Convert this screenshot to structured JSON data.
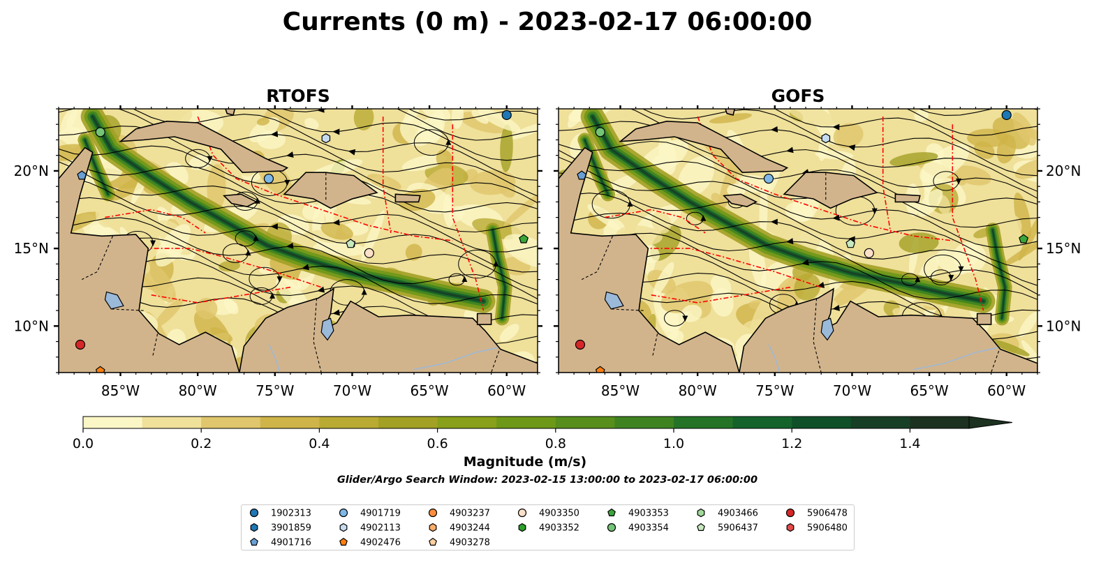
{
  "chart_data": {
    "type": "heatmap",
    "title": "Currents (0 m) - 2023-02-17 06:00:00",
    "panels": [
      {
        "name": "RTOFS"
      },
      {
        "name": "GOFS"
      }
    ],
    "xlim": [
      -89,
      -58
    ],
    "ylim": [
      7,
      24
    ],
    "x_ticks": [
      {
        "value": -85,
        "label": "85°W"
      },
      {
        "value": -80,
        "label": "80°W"
      },
      {
        "value": -75,
        "label": "75°W"
      },
      {
        "value": -70,
        "label": "70°W"
      },
      {
        "value": -65,
        "label": "65°W"
      },
      {
        "value": -60,
        "label": "60°W"
      }
    ],
    "y_ticks": [
      {
        "value": 10,
        "label": "10°N"
      },
      {
        "value": 15,
        "label": "15°N"
      },
      {
        "value": 20,
        "label": "20°N"
      }
    ],
    "colorbar": {
      "label": "Magnitude (m/s)",
      "range": [
        0,
        1.5
      ],
      "extend": "max",
      "levels": [
        0.0,
        0.1,
        0.2,
        0.3,
        0.4,
        0.5,
        0.6,
        0.7,
        0.8,
        0.9,
        1.0,
        1.1,
        1.2,
        1.3,
        1.4,
        1.5
      ],
      "colors": [
        "#fbf6c6",
        "#efe09a",
        "#e0c66c",
        "#cfb449",
        "#b9aa34",
        "#a2a025",
        "#88a01a",
        "#6e9818",
        "#578e1c",
        "#3f8321",
        "#247326",
        "#14632b",
        "#0f5029",
        "#173f25",
        "#1c3120"
      ],
      "ticks": [
        {
          "value": 0.0,
          "label": "0.0"
        },
        {
          "value": 0.2,
          "label": "0.2"
        },
        {
          "value": 0.4,
          "label": "0.4"
        },
        {
          "value": 0.6,
          "label": "0.6"
        },
        {
          "value": 0.8,
          "label": "0.8"
        },
        {
          "value": 1.0,
          "label": "1.0"
        },
        {
          "value": 1.2,
          "label": "1.2"
        },
        {
          "value": 1.4,
          "label": "1.4"
        }
      ]
    },
    "subtitle": "Glider/Argo Search Window: 2023-02-15 13:00:00 to 2023-02-17 06:00:00",
    "land_color": "#d2b48c",
    "eez_color": "#ff0000",
    "floats": [
      {
        "id": "1902313",
        "marker": "circle",
        "color": "#1f77b4",
        "lon": -60.0,
        "lat": 23.6
      },
      {
        "id": "3901859",
        "marker": "hexagon",
        "color": "#1f77b4",
        "lon": null,
        "lat": null
      },
      {
        "id": "4901716",
        "marker": "pentagon",
        "color": "#6a9fd4",
        "lon": -87.5,
        "lat": 19.7
      },
      {
        "id": "4901719",
        "marker": "circle",
        "color": "#7fb8e6",
        "lon": -75.4,
        "lat": 19.5
      },
      {
        "id": "4902113",
        "marker": "hexagon",
        "color": "#c6dbef",
        "lon": -71.7,
        "lat": 22.1
      },
      {
        "id": "4902476",
        "marker": "pentagon",
        "color": "#ff7f0e",
        "lon": -86.3,
        "lat": 7.1
      },
      {
        "id": "4903237",
        "marker": "circle",
        "color": "#fd8d3c",
        "lon": null,
        "lat": null
      },
      {
        "id": "4903244",
        "marker": "hexagon",
        "color": "#fdae6b",
        "lon": null,
        "lat": null
      },
      {
        "id": "4903278",
        "marker": "pentagon",
        "color": "#fdd0a2",
        "lon": null,
        "lat": null
      },
      {
        "id": "4903350",
        "marker": "circle",
        "color": "#fde0c8",
        "lon": -68.9,
        "lat": 14.7
      },
      {
        "id": "4903352",
        "marker": "hexagon",
        "color": "#2ca02c",
        "lon": null,
        "lat": null
      },
      {
        "id": "4903353",
        "marker": "pentagon",
        "color": "#3aa63a",
        "lon": -58.9,
        "lat": 15.6
      },
      {
        "id": "4903354",
        "marker": "circle",
        "color": "#74c476",
        "lon": -86.3,
        "lat": 22.5
      },
      {
        "id": "4903466",
        "marker": "hexagon",
        "color": "#a1d99b",
        "lon": null,
        "lat": null
      },
      {
        "id": "5906437",
        "marker": "pentagon",
        "color": "#c7e9c0",
        "lon": -70.1,
        "lat": 15.3
      },
      {
        "id": "5906478",
        "marker": "circle",
        "color": "#d62728",
        "lon": -87.6,
        "lat": 8.8
      },
      {
        "id": "5906480",
        "marker": "hexagon",
        "color": "#e34a4a",
        "lon": null,
        "lat": null
      }
    ]
  },
  "legend_columns": [
    [
      "1902313",
      "3901859",
      "4901716"
    ],
    [
      "4901719",
      "4902113",
      "4902476"
    ],
    [
      "4903237",
      "4903244",
      "4903278"
    ],
    [
      "4903350",
      "4903352"
    ],
    [
      "4903353",
      "4903354"
    ],
    [
      "4903466",
      "5906437"
    ],
    [
      "5906478",
      "5906480"
    ]
  ]
}
